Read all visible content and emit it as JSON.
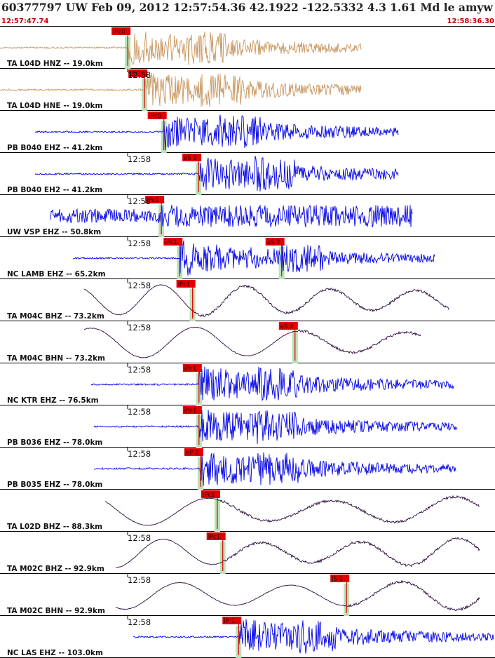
{
  "header": {
    "title": "60377797 UW Feb 09, 2012 12:57:54.36   42.1922 -122.5332  4.3 1.61 Md le amyw UW 01   5",
    "start_time": "12:57:47.74",
    "end_time": "12:58:36.30"
  },
  "colors": {
    "brown": "#c8955e",
    "blue": "#0000e6",
    "purple": "#2a0a3c",
    "pick_red": "#e00000",
    "green_band": "#b8e3b8",
    "title_text": "#222222",
    "time_text": "#c00000"
  },
  "chart_data": {
    "type": "line",
    "title": "60377797 UW Feb 09, 2012 12:57:54.36   42.1922 -122.5332  4.3 1.61 Md le amyw UW 01   5",
    "x_range": [
      "12:57:47.74",
      "12:58:36.30"
    ],
    "tick_label": "12:58",
    "traces": [
      {
        "label": "TA L04D HNZ -- 19.0km",
        "distance_km": 19.0,
        "color": "brown",
        "kind": "burst",
        "show_tick": false,
        "picks": [
          {
            "label": "iPc0",
            "t": 0.258
          }
        ]
      },
      {
        "label": "TA L04D HNE -- 19.0km",
        "distance_km": 19.0,
        "color": "brown",
        "kind": "burst",
        "show_tick": true,
        "picks": [
          {
            "label": "iS 1",
            "t": 0.292
          }
        ]
      },
      {
        "label": "PB B040 EHZ -- 41.2km",
        "distance_km": 41.2,
        "color": "blue",
        "kind": "burst",
        "show_tick": false,
        "picks": [
          {
            "label": "iPc0",
            "t": 0.331
          }
        ]
      },
      {
        "label": "PB B040 EH2 -- 41.2km",
        "distance_km": 41.2,
        "color": "blue",
        "kind": "burst",
        "show_tick": true,
        "picks": [
          {
            "label": "eS 2",
            "t": 0.401
          }
        ]
      },
      {
        "label": "UW VSP EHZ -- 50.8km",
        "distance_km": 50.8,
        "color": "blue",
        "kind": "noisy",
        "show_tick": true,
        "picks": [
          {
            "label": "iPc1",
            "t": 0.326
          }
        ]
      },
      {
        "label": "NC LAMB EHZ -- 65.2km",
        "distance_km": 65.2,
        "color": "blue",
        "kind": "burst",
        "show_tick": true,
        "picks": [
          {
            "label": "iPc1",
            "t": 0.363
          },
          {
            "label": "eS 2",
            "t": 0.569
          }
        ]
      },
      {
        "label": "TA M04C BHZ -- 73.2km",
        "distance_km": 73.2,
        "color": "purple",
        "kind": "wave",
        "show_tick": true,
        "picks": [
          {
            "label": "iPc1",
            "t": 0.389
          }
        ]
      },
      {
        "label": "TA M04C BHN -- 73.2km",
        "distance_km": 73.2,
        "color": "purple",
        "kind": "wave",
        "show_tick": true,
        "picks": [
          {
            "label": "eS 2",
            "t": 0.596
          }
        ]
      },
      {
        "label": "NC KTR EHZ -- 76.5km",
        "distance_km": 76.5,
        "color": "blue",
        "kind": "burst",
        "show_tick": true,
        "picks": [
          {
            "label": "iPc1",
            "t": 0.402
          }
        ]
      },
      {
        "label": "PB B036 EHZ -- 78.0km",
        "distance_km": 78.0,
        "color": "blue",
        "kind": "burst",
        "show_tick": true,
        "picks": [
          {
            "label": "iPc1",
            "t": 0.402
          }
        ]
      },
      {
        "label": "PB B035 EHZ -- 78.0km",
        "distance_km": 78.0,
        "color": "blue",
        "kind": "burst",
        "show_tick": true,
        "picks": [
          {
            "label": "eP 2",
            "t": 0.405
          }
        ]
      },
      {
        "label": "TA L02D BHZ -- 88.3km",
        "distance_km": 88.3,
        "color": "purple",
        "kind": "wave",
        "show_tick": false,
        "picks": [
          {
            "label": "iPc1",
            "t": 0.439
          }
        ]
      },
      {
        "label": "TA M02C BHZ -- 92.9km",
        "distance_km": 92.9,
        "color": "purple",
        "kind": "wave",
        "show_tick": true,
        "picks": [
          {
            "label": "iPc1",
            "t": 0.45
          }
        ]
      },
      {
        "label": "TA M02C BHN -- 92.9km",
        "distance_km": 92.9,
        "color": "purple",
        "kind": "wave",
        "show_tick": true,
        "picks": [
          {
            "label": "iS 1",
            "t": 0.7
          }
        ]
      },
      {
        "label": "NC LAS EHZ -- 103.0km",
        "distance_km": 103.0,
        "color": "blue",
        "kind": "burst",
        "show_tick": true,
        "picks": [
          {
            "label": "iP 1",
            "t": 0.482
          }
        ]
      }
    ]
  }
}
